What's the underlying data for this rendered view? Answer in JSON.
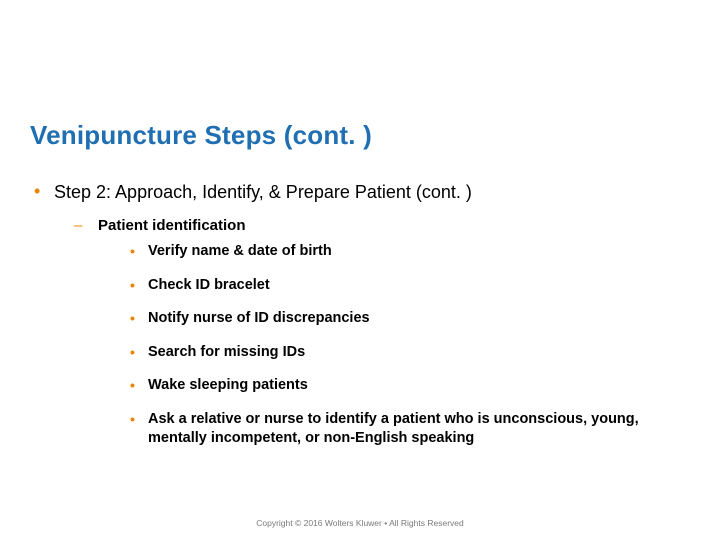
{
  "title": "Venipuncture Steps (cont. )",
  "colors": {
    "title_color": "#1f6fb2",
    "bullet_color": "#e98300",
    "text_color": "#000000",
    "footer_color": "#7a7a7a",
    "background": "#ffffff"
  },
  "typography": {
    "title_fontsize_pt": 26,
    "lvl1_fontsize_pt": 18,
    "lvl2_fontsize_pt": 15,
    "lvl3_fontsize_pt": 14.5,
    "footer_fontsize_pt": 8.5,
    "font_family": "Verdana"
  },
  "step": {
    "heading": "Step 2: Approach, Identify, & Prepare Patient (cont. )",
    "subheading": "Patient identification",
    "items": [
      "Verify name & date of birth",
      "Check ID bracelet",
      "Notify nurse of ID discrepancies",
      "Search for missing IDs",
      "Wake sleeping patients",
      "Ask a relative or nurse to identify a patient who is unconscious, young, mentally incompetent, or non-English speaking"
    ]
  },
  "footer": "Copyright © 2016 Wolters Kluwer • All Rights Reserved"
}
